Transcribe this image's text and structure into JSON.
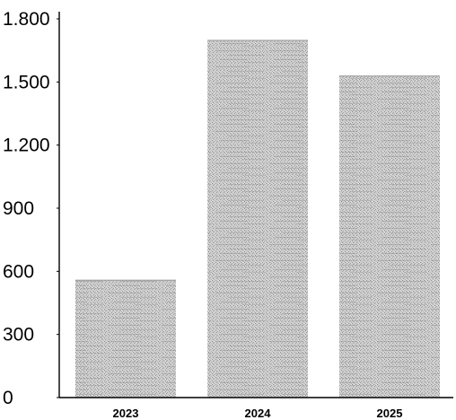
{
  "chart_data": {
    "type": "bar",
    "categories": [
      "2023",
      "2024",
      "2025"
    ],
    "values": [
      560,
      1700,
      1530
    ],
    "ylim": [
      0,
      1800
    ],
    "yticks": [
      0,
      300,
      600,
      900,
      1200,
      1500,
      1800
    ],
    "ytick_labels": [
      "0",
      "300",
      "600",
      "900",
      "1.200",
      "1.500",
      "1.800"
    ],
    "grid": false,
    "legend": "none",
    "bar_color": "#c8c8c8",
    "bar_texture": "dithered-gray"
  }
}
